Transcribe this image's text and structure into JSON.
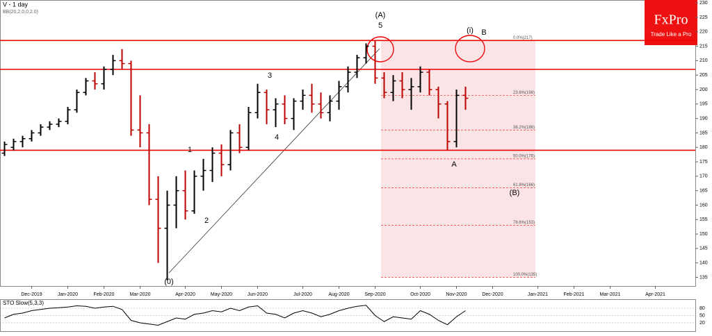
{
  "chart_data": {
    "type": "ohlc",
    "title": "V - 1 day",
    "indicator_label": "BB(20,2.0,0,2.0)",
    "subchart_title": "STO Slow(5,3,3)",
    "categories": [
      null,
      null,
      null,
      "Dec-2019",
      null,
      null,
      null,
      "Jan-2020",
      null,
      null,
      null,
      "Feb-2020",
      null,
      null,
      null,
      "Mar-2020",
      null,
      null,
      null,
      null,
      "Apr-2020",
      null,
      null,
      null,
      "May-2020",
      null,
      null,
      null,
      "Jun-2020",
      null,
      null,
      null,
      null,
      "Jul-2020",
      null,
      null,
      null,
      "Aug-2020",
      null,
      null,
      null,
      "Sep-2020",
      null,
      null,
      null,
      null,
      "Oct-2020",
      null,
      null,
      null,
      "Nov-2020",
      null,
      null,
      null,
      "Dec-2020",
      null,
      null,
      null,
      null,
      "Jan-2021",
      null,
      null,
      null,
      "Feb-2021",
      null,
      null,
      null,
      "Mar-2021",
      null,
      null,
      null,
      null,
      "Apr-2021",
      null,
      null,
      null,
      null
    ],
    "open": [
      178,
      180,
      182,
      183,
      185,
      187,
      188,
      189,
      193,
      199,
      203,
      202,
      207,
      210,
      209,
      186,
      185,
      162,
      152,
      160,
      165,
      158,
      170,
      172,
      178,
      174,
      185,
      180,
      192,
      199,
      193,
      195,
      190,
      196,
      198,
      195,
      192,
      196,
      201,
      206,
      211,
      215,
      204,
      199,
      203,
      200,
      201,
      206,
      200,
      195,
      182,
      198,
      null,
      null,
      null,
      null,
      null,
      null,
      null,
      null,
      null,
      null,
      null,
      null,
      null,
      null,
      null,
      null,
      null,
      null,
      null,
      null,
      null,
      null,
      null,
      null,
      null
    ],
    "high": [
      182,
      183,
      184,
      186,
      188,
      189,
      190,
      194,
      200,
      204,
      206,
      208,
      212,
      214,
      210,
      198,
      188,
      170,
      165,
      170,
      172,
      172,
      176,
      180,
      181,
      186,
      188,
      194,
      202,
      200,
      197,
      198,
      197,
      200,
      202,
      199,
      198,
      203,
      208,
      212,
      216,
      217,
      206,
      205,
      206,
      204,
      208,
      207,
      201,
      196,
      200,
      201,
      null,
      null,
      null,
      null,
      null,
      null,
      null,
      null,
      null,
      null,
      null,
      null,
      null,
      null,
      null,
      null,
      null,
      null,
      null,
      null,
      null,
      null,
      null,
      null,
      null
    ],
    "low": [
      177,
      179,
      180,
      182,
      184,
      186,
      187,
      188,
      192,
      198,
      200,
      200,
      205,
      207,
      184,
      180,
      160,
      140,
      134,
      152,
      155,
      157,
      165,
      168,
      170,
      172,
      178,
      179,
      190,
      188,
      187,
      188,
      186,
      193,
      192,
      190,
      189,
      193,
      199,
      204,
      209,
      202,
      197,
      196,
      197,
      193,
      199,
      198,
      190,
      179,
      180,
      193,
      null,
      null,
      null,
      null,
      null,
      null,
      null,
      null,
      null,
      null,
      null,
      null,
      null,
      null,
      null,
      null,
      null,
      null,
      null,
      null,
      null,
      null,
      null,
      null,
      null
    ],
    "close": [
      181,
      182,
      183,
      185,
      187,
      188,
      189,
      193,
      199,
      203,
      202,
      207,
      210,
      209,
      186,
      185,
      162,
      152,
      160,
      165,
      158,
      170,
      172,
      178,
      174,
      185,
      180,
      192,
      199,
      193,
      195,
      190,
      196,
      198,
      195,
      192,
      196,
      201,
      206,
      211,
      215,
      204,
      199,
      203,
      200,
      201,
      206,
      200,
      195,
      182,
      198,
      197,
      null,
      null,
      null,
      null,
      null,
      null,
      null,
      null,
      null,
      null,
      null,
      null,
      null,
      null,
      null,
      null,
      null,
      null,
      null,
      null,
      null,
      null,
      null,
      null,
      null
    ],
    "ylim": [
      132,
      231
    ],
    "yticks": [
      135,
      140,
      145,
      150,
      155,
      160,
      165,
      170,
      175,
      180,
      185,
      190,
      195,
      200,
      205,
      210,
      215,
      220,
      225,
      230
    ],
    "levels": [
      217,
      207,
      179
    ],
    "fib_levels": [
      {
        "value": 217,
        "label": "0.0%(217)"
      },
      {
        "value": 198,
        "label": "23.6%(198)"
      },
      {
        "value": 186,
        "label": "38.2%(186)"
      },
      {
        "value": 176,
        "label": "50.0%(176)"
      },
      {
        "value": 166,
        "label": "61.8%(166)"
      },
      {
        "value": 153,
        "label": "78.6%(153)"
      },
      {
        "value": 135,
        "label": "100.0%(135)"
      }
    ],
    "annotations": [
      "(A)",
      "5",
      "3",
      "4",
      "(0)",
      "1",
      "2",
      "A",
      "B",
      "(B)",
      "(i)"
    ],
    "stoch": {
      "values": [
        40,
        55,
        60,
        70,
        75,
        80,
        82,
        85,
        90,
        88,
        80,
        85,
        88,
        75,
        30,
        20,
        15,
        10,
        25,
        40,
        35,
        55,
        60,
        70,
        65,
        80,
        70,
        85,
        90,
        60,
        55,
        40,
        60,
        70,
        60,
        45,
        55,
        70,
        80,
        88,
        92,
        50,
        25,
        45,
        40,
        35,
        70,
        55,
        30,
        12,
        45,
        70,
        null,
        null,
        null,
        null,
        null,
        null,
        null,
        null,
        null,
        null,
        null,
        null,
        null,
        null,
        null,
        null,
        null,
        null,
        null,
        null,
        null,
        null,
        null,
        null,
        null
      ],
      "ylim": [
        0,
        100
      ],
      "yticks": [
        20,
        50,
        80
      ]
    },
    "logo": {
      "brand": "FxPro",
      "tagline": "Trade Like a Pro"
    }
  }
}
